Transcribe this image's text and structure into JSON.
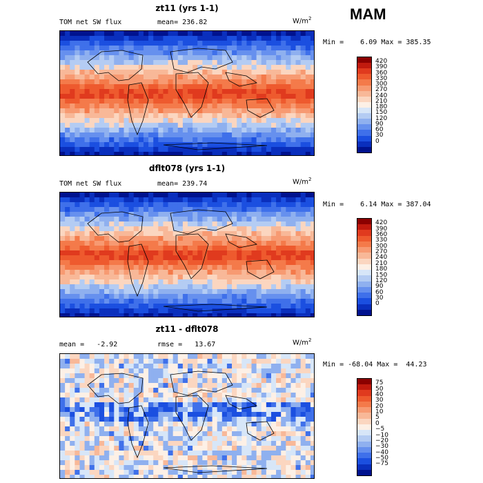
{
  "season": "MAM",
  "panels": [
    {
      "title": "zt11 (yrs 1-1)",
      "label_left": "TOM net SW flux",
      "label_mid": "mean= 236.82",
      "units": "W/m",
      "units_sup": "2",
      "minmax": "Min =    6.09 Max = 385.35",
      "colorbar": {
        "ticks": [
          "420",
          "390",
          "360",
          "330",
          "300",
          "270",
          "240",
          "210",
          "180",
          "150",
          "120",
          "90",
          "60",
          "30",
          "0"
        ],
        "colors": [
          "#8b0000",
          "#c11a0e",
          "#e03a1e",
          "#ee5a2e",
          "#f47a4a",
          "#f79a72",
          "#f8b898",
          "#fbd6c0",
          "#fdf0e6",
          "#d7e6f8",
          "#b4ccf3",
          "#8fb0ef",
          "#6690ee",
          "#3f70ea",
          "#1b4fe0",
          "#0a2fbd",
          "#00128e"
        ]
      }
    },
    {
      "title": "dflt078 (yrs 1-1)",
      "label_left": "TOM net SW flux",
      "label_mid": "mean= 239.74",
      "units": "W/m",
      "units_sup": "2",
      "minmax": "Min =    6.14 Max = 387.04",
      "colorbar": {
        "ticks": [
          "420",
          "390",
          "360",
          "330",
          "300",
          "270",
          "240",
          "210",
          "180",
          "150",
          "120",
          "90",
          "60",
          "30",
          "0"
        ],
        "colors": [
          "#8b0000",
          "#c11a0e",
          "#e03a1e",
          "#ee5a2e",
          "#f47a4a",
          "#f79a72",
          "#f8b898",
          "#fbd6c0",
          "#fdf0e6",
          "#d7e6f8",
          "#b4ccf3",
          "#8fb0ef",
          "#6690ee",
          "#3f70ea",
          "#1b4fe0",
          "#0a2fbd",
          "#00128e"
        ]
      }
    },
    {
      "title": "zt11 - dflt078",
      "label_left": "mean =   -2.92",
      "label_mid": "rmse =   13.67",
      "units": "W/m",
      "units_sup": "2",
      "minmax": "Min = -68.04 Max =  44.23",
      "colorbar": {
        "ticks": [
          "75",
          "50",
          "40",
          "30",
          "20",
          "10",
          "5",
          "0",
          "−5",
          "−10",
          "−20",
          "−30",
          "−40",
          "−50",
          "−75"
        ],
        "colors": [
          "#8b0000",
          "#c11a0e",
          "#e03a1e",
          "#ee5a2e",
          "#f47a4a",
          "#f79a72",
          "#f8b898",
          "#fbd6c0",
          "#fdf0e6",
          "#d7e6f8",
          "#b4ccf3",
          "#8fb0ef",
          "#6690ee",
          "#3f70ea",
          "#1b4fe0",
          "#0a2fbd",
          "#00128e"
        ]
      }
    }
  ]
}
